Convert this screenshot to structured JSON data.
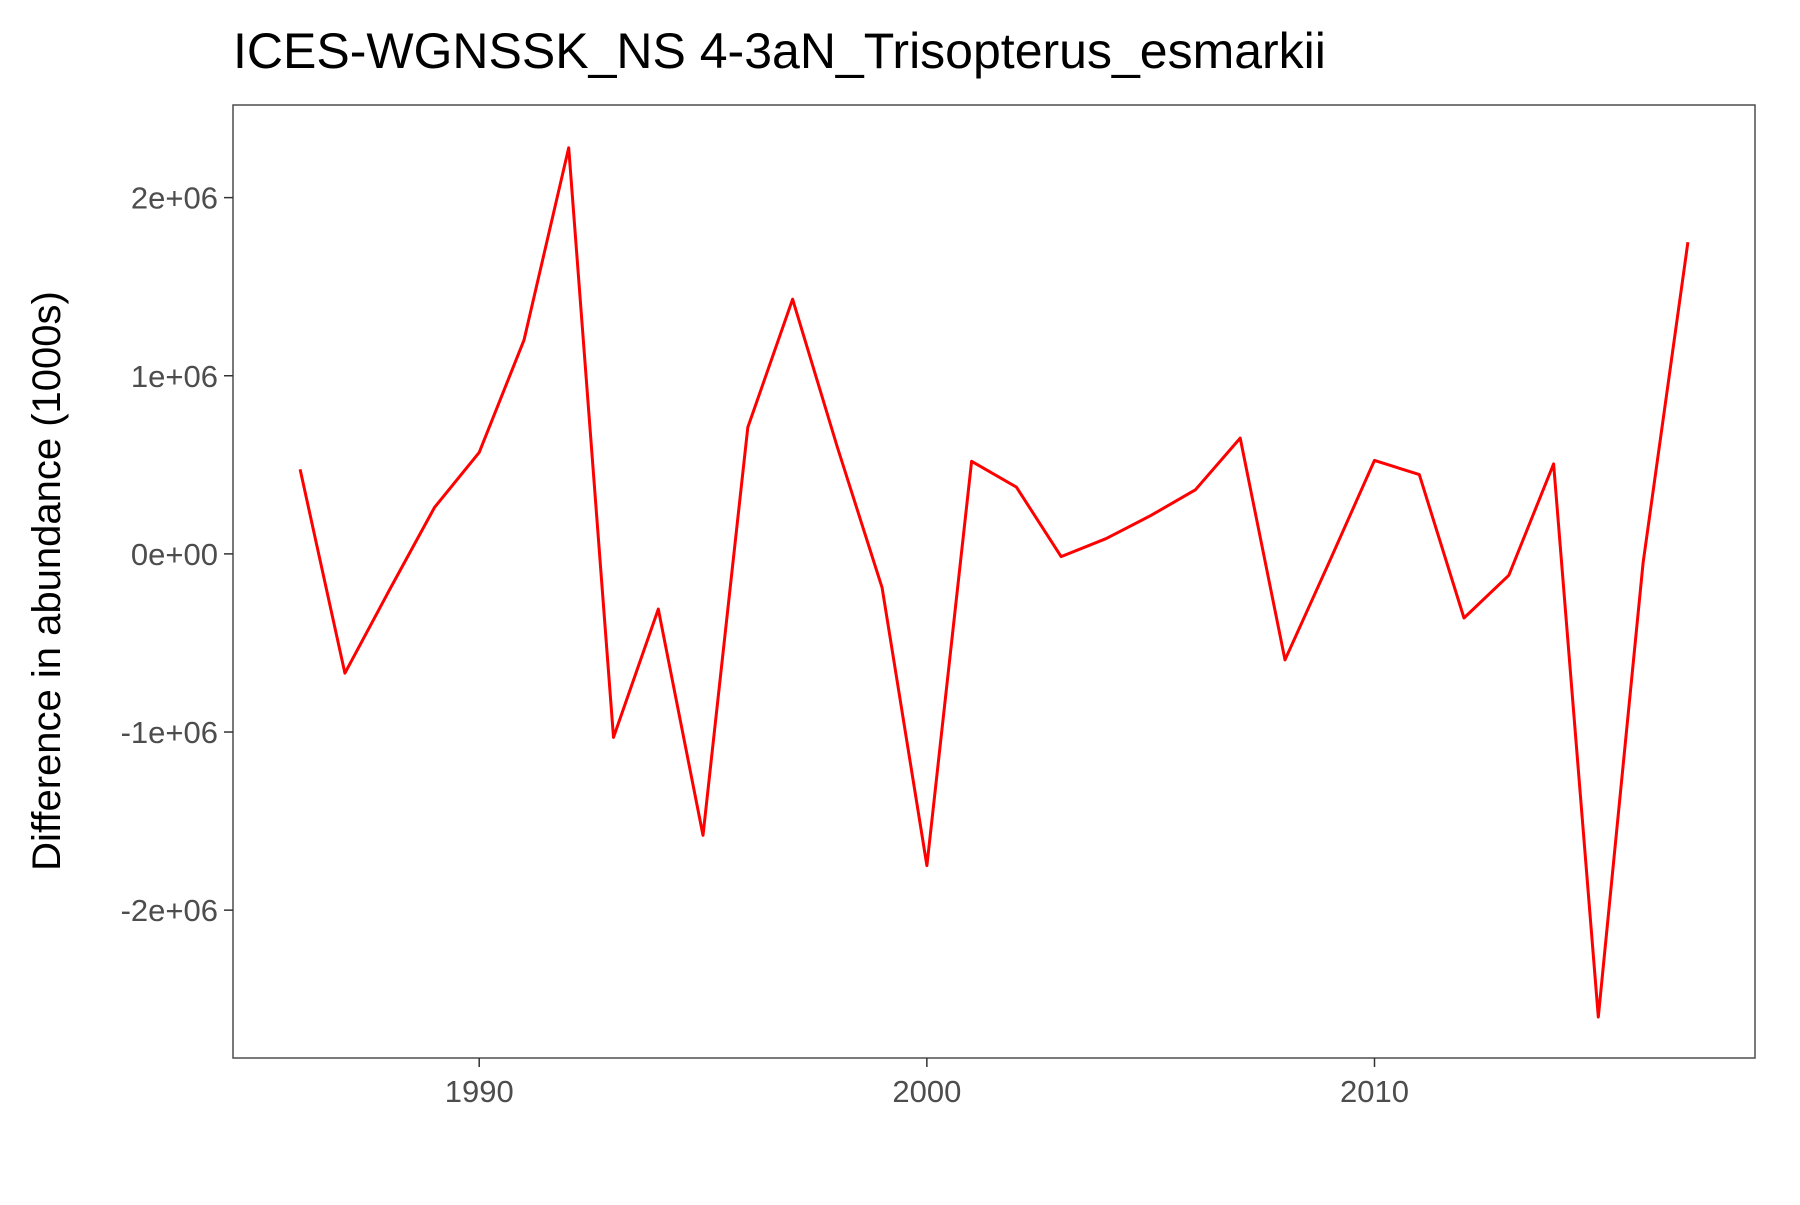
{
  "chart_data": {
    "type": "line",
    "title": "ICES-WGNSSK_NS 4-3aN_Trisopterus_esmarkii",
    "xlabel": "",
    "ylabel": "Difference in abundance (1000s)",
    "xlim": [
      1984.5,
      2018.5
    ],
    "ylim": [
      -2830000,
      2520000
    ],
    "x_ticks": [
      1990,
      2000,
      2010
    ],
    "x_tick_labels": [
      "1990",
      "2000",
      "2010"
    ],
    "y_ticks": [
      2000000,
      1000000,
      0,
      -1000000,
      -2000000
    ],
    "y_tick_labels": [
      "2e+06",
      "1e+06",
      "0e+00",
      "-1e+06",
      "-2e+06"
    ],
    "grid": false,
    "legend": "none",
    "line_color": "#ff0000",
    "series": [
      {
        "x": [
          1986,
          1987,
          1988,
          1989,
          1990,
          1991,
          1992,
          1993,
          1994,
          1995,
          1996,
          1997,
          1998,
          1999,
          2000,
          2001,
          2002,
          2003,
          2004,
          2005,
          2006,
          2007,
          2008,
          2009,
          2010,
          2011,
          2012,
          2013,
          2014,
          2015,
          2016,
          2017
        ],
        "values": [
          475000,
          -670000,
          -200000,
          260000,
          570000,
          1200000,
          2280000,
          -1030000,
          -310000,
          -1580000,
          710000,
          1430000,
          600000,
          -190000,
          -1750000,
          520000,
          375000,
          -15000,
          85000,
          215000,
          360000,
          650000,
          -595000,
          -40000,
          525000,
          445000,
          -360000,
          -120000,
          505000,
          -2600000,
          -50000,
          1750000
        ]
      }
    ]
  }
}
